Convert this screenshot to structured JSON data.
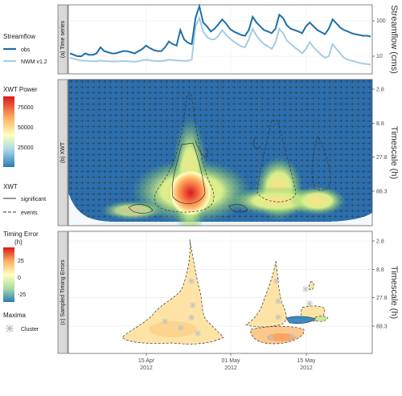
{
  "chart_data": [
    {
      "panel": "(a) Time series",
      "type": "line",
      "ylabel": "Streamflow (cms)",
      "y_scale": "log",
      "y_ticks": [
        "10",
        "100"
      ],
      "series": [
        {
          "name": "obs",
          "color": "#1f6fa8",
          "values": [
            12,
            11,
            10,
            10,
            12,
            11,
            11,
            12,
            18,
            14,
            13,
            12,
            12,
            13,
            14,
            14,
            13,
            12,
            14,
            16,
            20,
            17,
            15,
            14,
            14,
            18,
            26,
            22,
            20,
            55,
            30,
            24,
            22,
            120,
            260,
            90,
            70,
            50,
            60,
            80,
            110,
            85,
            60,
            50,
            45,
            40,
            38,
            55,
            130,
            90,
            70,
            55,
            50,
            45,
            60,
            150,
            120,
            75,
            60,
            55,
            50,
            45,
            70,
            90,
            70,
            55,
            48,
            42,
            60,
            110,
            85,
            65,
            55,
            50,
            45,
            42,
            40,
            38,
            38,
            36
          ]
        },
        {
          "name": "NWM v1.2",
          "color": "#a6cce3",
          "values": [
            9,
            8.5,
            8,
            7.5,
            7.5,
            7.3,
            7.2,
            7.2,
            7.5,
            7.3,
            7.2,
            7.1,
            7.1,
            7.2,
            7.3,
            7.2,
            7.1,
            7,
            7.2,
            7.6,
            8,
            7.6,
            7.4,
            7.3,
            7.3,
            7.5,
            8,
            7.8,
            7.6,
            7.5,
            7.4,
            7.4,
            8,
            70,
            120,
            50,
            35,
            30,
            30,
            38,
            55,
            40,
            32,
            26,
            22,
            19,
            18,
            30,
            60,
            38,
            28,
            22,
            19,
            16,
            24,
            60,
            45,
            28,
            22,
            18,
            15,
            12,
            16,
            25,
            18,
            14,
            11,
            9,
            10,
            22,
            16,
            12,
            9,
            8,
            7.5,
            7,
            6.5,
            6.2,
            6,
            5.8
          ]
        }
      ]
    },
    {
      "panel": "(b) XWT",
      "type": "heatmap",
      "ylabel": "Timescale (h)",
      "y_ticks": [
        "2.8",
        "8.8",
        "27.8",
        "88.3"
      ],
      "colorbar": {
        "title": "XWT Power",
        "ticks": [
          "75000",
          "50000",
          "25000"
        ]
      }
    },
    {
      "panel": "(c) Sampled Timing Errors",
      "type": "heatmap",
      "ylabel": "Timescale (h)",
      "y_ticks": [
        "2.8",
        "8.8",
        "27.8",
        "88.3"
      ],
      "x_ticks": [
        "15 Apr\n2012",
        "01 May\n2012",
        "15 May\n2012"
      ],
      "colorbar": {
        "title": "Timing Error\n(h)",
        "ticks": [
          "25",
          "0",
          "-25"
        ]
      }
    }
  ],
  "legend": {
    "streamflow_title": "Streamflow",
    "obs": "obs",
    "nwm": "NWM v1.2",
    "xwt_power_title": "XWT Power",
    "xwt_power_ticks": [
      "75000",
      "50000",
      "25000"
    ],
    "xwt_title": "XWT",
    "significant": "significant",
    "events": "events",
    "timing_title_1": "Timing Error",
    "timing_title_2": "(h)",
    "timing_ticks": [
      "25",
      "0",
      "-25"
    ],
    "maxima_title": "Maxima",
    "cluster": "Cluster"
  },
  "panels": {
    "a_strip": "(a) Time series",
    "b_strip": "(b) XWT",
    "c_strip": "(c) Sampled Timing Errors",
    "a_ylabel": "Streamflow (cms)",
    "b_ylabel": "Timescale (h)",
    "c_ylabel": "Timescale (h)",
    "a_ticks": [
      "100",
      "10"
    ],
    "b_ticks": [
      "2.8",
      "8.8",
      "27.8",
      "88.3"
    ],
    "c_ticks": [
      "2.8",
      "8.8",
      "27.8",
      "88.3"
    ],
    "x_ticks": [
      {
        "l1": "15 Apr",
        "l2": "2012"
      },
      {
        "l1": "01 May",
        "l2": "2012"
      },
      {
        "l1": "15 May",
        "l2": "2012"
      }
    ]
  }
}
